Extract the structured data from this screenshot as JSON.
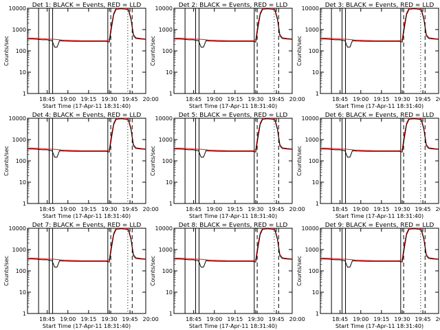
{
  "chart_data": [
    {
      "type": "line",
      "title": "Det 1: BLACK = Events, RED = LLD"
    },
    {
      "type": "line",
      "title": "Det 2: BLACK = Events, RED = LLD"
    },
    {
      "type": "line",
      "title": "Det 3: BLACK = Events, RED = LLD"
    },
    {
      "type": "line",
      "title": "Det 4: BLACK = Events, RED = LLD"
    },
    {
      "type": "line",
      "title": "Det 5: BLACK = Events, RED = LLD"
    },
    {
      "type": "line",
      "title": "Det 6: BLACK = Events, RED = LLD"
    },
    {
      "type": "line",
      "title": "Det 7: BLACK = Events, RED = LLD"
    },
    {
      "type": "line",
      "title": "Det 8: BLACK = Events, RED = LLD"
    },
    {
      "type": "line",
      "title": "Det 9: BLACK = Events, RED = LLD"
    }
  ],
  "shared": {
    "ylabel": "Counts/sec",
    "xlabel": "Start Time (17-Apr-11 18:31:40)",
    "yscale": "log",
    "ylim": [
      1,
      10000
    ],
    "yticks": [
      "1",
      "10",
      "100",
      "1000",
      "10000"
    ],
    "xlim_minutes": [
      -8,
      40
    ],
    "xticks": [
      {
        "label": "18:45",
        "t": 0
      },
      {
        "label": "19:00",
        "t": 8.4
      },
      {
        "label": "19:15",
        "t": 16.8
      },
      {
        "label": "19:30",
        "t": 25.2
      },
      {
        "label": "19:45",
        "t": 33.6
      },
      {
        "label": "20:00",
        "t": 42
      }
    ],
    "events_color": "#000000",
    "lld_color": "#ff0000",
    "events": [
      [
        -8,
        360
      ],
      [
        -6,
        360
      ],
      [
        -4,
        350
      ],
      [
        -3,
        340
      ],
      [
        -2,
        330
      ],
      [
        0,
        330
      ],
      [
        1,
        310
      ],
      [
        2,
        300
      ],
      [
        3,
        150
      ],
      [
        4,
        150
      ],
      [
        5,
        300
      ],
      [
        7,
        290
      ],
      [
        10,
        280
      ],
      [
        14,
        280
      ],
      [
        18,
        280
      ],
      [
        22,
        280
      ],
      [
        24,
        280
      ],
      [
        25.2,
        260
      ],
      [
        26,
        1000
      ],
      [
        27,
        5000
      ],
      [
        28,
        9000
      ],
      [
        30,
        9500
      ],
      [
        32,
        9000
      ],
      [
        33,
        8000
      ],
      [
        34,
        3000
      ],
      [
        35,
        500
      ],
      [
        36,
        380
      ],
      [
        38,
        360
      ],
      [
        40,
        350
      ]
    ],
    "lld": [
      [
        -8,
        400
      ],
      [
        -4,
        390
      ],
      [
        0,
        360
      ],
      [
        3,
        350
      ],
      [
        6,
        320
      ],
      [
        10,
        310
      ],
      [
        14,
        300
      ],
      [
        18,
        300
      ],
      [
        22,
        300
      ],
      [
        24,
        300
      ],
      [
        25.2,
        330
      ],
      [
        26,
        1500
      ],
      [
        27,
        6000
      ],
      [
        28,
        10000
      ],
      [
        30,
        11000
      ],
      [
        32,
        10000
      ],
      [
        33,
        9000
      ],
      [
        34,
        3500
      ],
      [
        35,
        600
      ],
      [
        36,
        420
      ],
      [
        38,
        380
      ],
      [
        40,
        360
      ]
    ],
    "solid_lines_t": [
      -3.5,
      0.8,
      2.2,
      24.6
    ],
    "dashed_lines_t": [
      25.8,
      34.5
    ],
    "dotted_lines_t": [
      32.7
    ]
  }
}
